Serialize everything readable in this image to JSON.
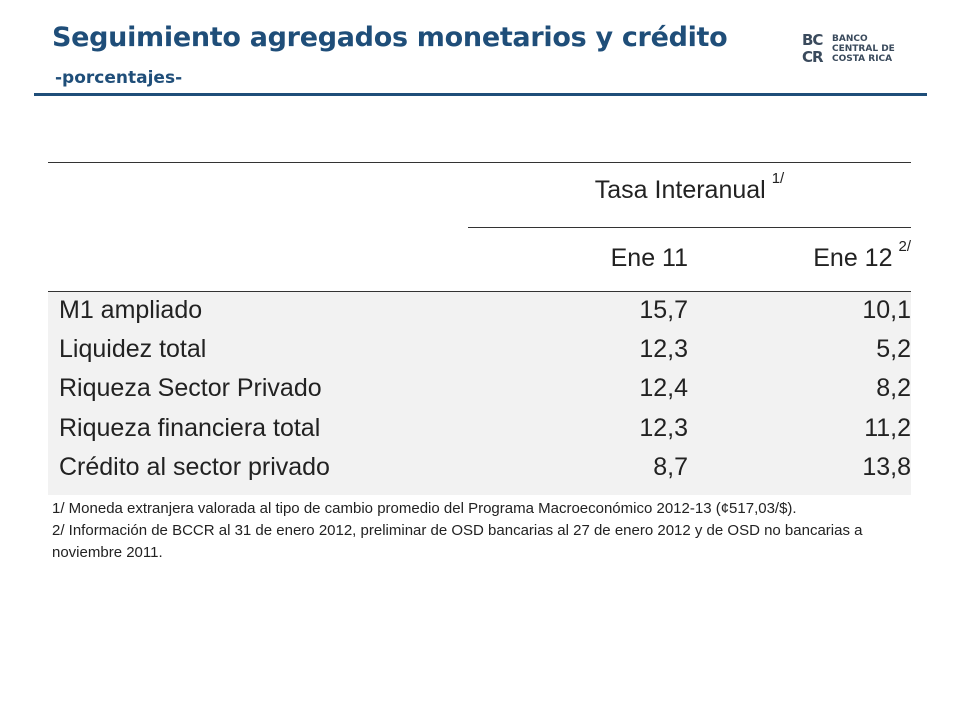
{
  "header": {
    "title": "Seguimiento agregados monetarios y crédito",
    "subtitle": "-porcentajes-"
  },
  "logo": {
    "mark_top": "BC",
    "mark_bottom": "CR",
    "line1": "BANCO",
    "line2": "CENTRAL DE",
    "line3": "COSTA RICA"
  },
  "table": {
    "span_header": "Tasa Interanual",
    "span_header_note": "1/",
    "columns": [
      {
        "label": "Ene 11",
        "note": ""
      },
      {
        "label": "Ene 12",
        "note": "2/"
      }
    ],
    "rows": [
      {
        "label": "M1 ampliado",
        "ene11": "15,7",
        "ene12": "10,1"
      },
      {
        "label": "Liquidez total",
        "ene11": "12,3",
        "ene12": "5,2"
      },
      {
        "label": "Riqueza Sector Privado",
        "ene11": "12,4",
        "ene12": "8,2"
      },
      {
        "label": "Riqueza financiera total",
        "ene11": "12,3",
        "ene12": "11,2"
      },
      {
        "label": "Crédito al sector privado",
        "ene11": "8,7",
        "ene12": "13,8"
      }
    ]
  },
  "footnotes": [
    "1/ Moneda extranjera valorada al tipo de cambio promedio del Programa Macroeconómico 2012-13 (¢517,03/$).",
    "2/ Información de BCCR al 31 de enero 2012, preliminar de OSD bancarias al 27 de enero 2012 y de OSD no bancarias a noviembre 2011."
  ]
}
